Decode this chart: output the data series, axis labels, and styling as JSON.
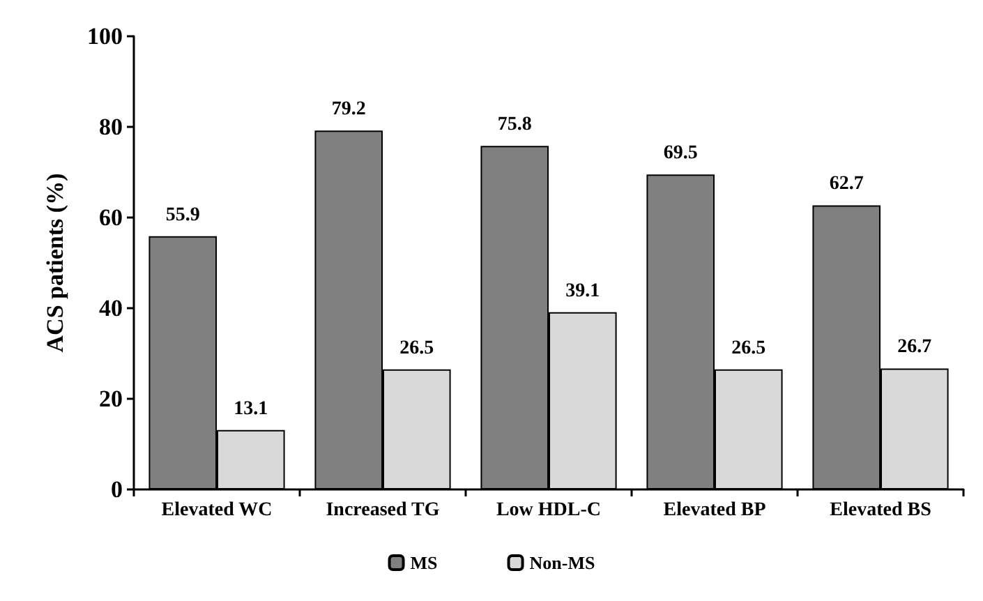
{
  "chart_data": {
    "type": "bar",
    "ylabel": "ACS patients (%)",
    "categories": [
      "Elevated WC",
      "Increased TG",
      "Low HDL-C",
      "Elevated BP",
      "Elevated BS"
    ],
    "series": [
      {
        "name": "MS",
        "color": "#808080",
        "values": [
          55.9,
          79.2,
          75.8,
          69.5,
          62.7
        ]
      },
      {
        "name": "Non-MS",
        "color": "#d9d9d9",
        "values": [
          13.1,
          26.5,
          39.1,
          26.5,
          26.7
        ]
      }
    ],
    "ylim": [
      0,
      100
    ],
    "yticks": [
      0,
      20,
      40,
      60,
      80,
      100
    ],
    "grid": false,
    "legend": "bottom",
    "data_labels": true
  }
}
